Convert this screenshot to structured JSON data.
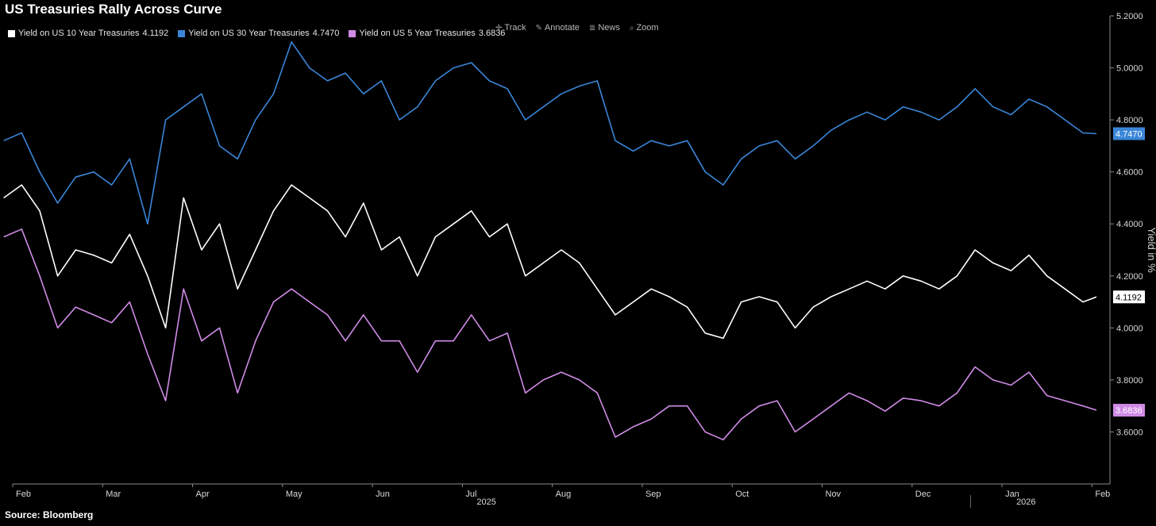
{
  "title": "US Treasuries Rally Across Curve",
  "source": "Source: Bloomberg",
  "toolbar": [
    {
      "label": "Track",
      "icon": "crosshair-icon",
      "glyph": "✛"
    },
    {
      "label": "Annotate",
      "icon": "pencil-icon",
      "glyph": "✎"
    },
    {
      "label": "News",
      "icon": "news-icon",
      "glyph": "≣"
    },
    {
      "label": "Zoom",
      "icon": "magnifier-icon",
      "glyph": "⌕"
    }
  ],
  "chart_data": {
    "type": "line",
    "title": "US Treasuries Rally Across Curve",
    "ylabel": "Yield in %",
    "ylim": [
      3.4,
      5.2
    ],
    "xlim": [
      0,
      12.2
    ],
    "yticks": [
      "5.2000",
      "5.0000",
      "4.8000",
      "4.6000",
      "4.4000",
      "4.2000",
      "4.0000",
      "3.8000",
      "3.6000"
    ],
    "month_labels": [
      "Feb",
      "Mar",
      "Apr",
      "May",
      "Jun",
      "Jul",
      "Aug",
      "Sep",
      "Oct",
      "Nov",
      "Dec",
      "Jan",
      "Feb"
    ],
    "year_labels": [
      {
        "label": "2025",
        "x": 5.0
      },
      {
        "label": "2026",
        "x": 11.0
      }
    ],
    "grid": false,
    "legend_position": "top-left",
    "series": [
      {
        "name": "Yield on US 10 Year Treasuries",
        "last_value": "4.1192",
        "color": "#ffffff",
        "x": [
          -0.1,
          0.1,
          0.3,
          0.5,
          0.7,
          0.9,
          1.1,
          1.3,
          1.5,
          1.7,
          1.9,
          2.1,
          2.3,
          2.5,
          2.7,
          2.9,
          3.1,
          3.3,
          3.5,
          3.7,
          3.9,
          4.1,
          4.3,
          4.5,
          4.7,
          4.9,
          5.1,
          5.3,
          5.5,
          5.7,
          5.9,
          6.1,
          6.3,
          6.5,
          6.7,
          6.9,
          7.1,
          7.3,
          7.5,
          7.7,
          7.9,
          8.1,
          8.3,
          8.5,
          8.7,
          8.9,
          9.1,
          9.3,
          9.5,
          9.7,
          9.9,
          10.1,
          10.3,
          10.5,
          10.7,
          10.9,
          11.1,
          11.3,
          11.5,
          11.7,
          11.9,
          12.05
        ],
        "values": [
          4.5,
          4.55,
          4.45,
          4.2,
          4.3,
          4.28,
          4.25,
          4.36,
          4.2,
          4.0,
          4.5,
          4.3,
          4.4,
          4.15,
          4.3,
          4.45,
          4.55,
          4.5,
          4.45,
          4.35,
          4.48,
          4.3,
          4.35,
          4.2,
          4.35,
          4.4,
          4.45,
          4.35,
          4.4,
          4.2,
          4.25,
          4.3,
          4.25,
          4.15,
          4.05,
          4.1,
          4.15,
          4.12,
          4.08,
          3.98,
          3.96,
          4.1,
          4.12,
          4.1,
          4.0,
          4.08,
          4.12,
          4.15,
          4.18,
          4.15,
          4.2,
          4.18,
          4.15,
          4.2,
          4.3,
          4.25,
          4.22,
          4.28,
          4.2,
          4.15,
          4.1,
          4.1192
        ]
      },
      {
        "name": "Yield on US 30 Year Treasuries",
        "last_value": "4.7470",
        "color": "#3a86d8",
        "x": [
          -0.1,
          0.1,
          0.3,
          0.5,
          0.7,
          0.9,
          1.1,
          1.3,
          1.5,
          1.7,
          1.9,
          2.1,
          2.3,
          2.5,
          2.7,
          2.9,
          3.1,
          3.3,
          3.5,
          3.7,
          3.9,
          4.1,
          4.3,
          4.5,
          4.7,
          4.9,
          5.1,
          5.3,
          5.5,
          5.7,
          5.9,
          6.1,
          6.3,
          6.5,
          6.7,
          6.9,
          7.1,
          7.3,
          7.5,
          7.7,
          7.9,
          8.1,
          8.3,
          8.5,
          8.7,
          8.9,
          9.1,
          9.3,
          9.5,
          9.7,
          9.9,
          10.1,
          10.3,
          10.5,
          10.7,
          10.9,
          11.1,
          11.3,
          11.5,
          11.7,
          11.9,
          12.05
        ],
        "values": [
          4.72,
          4.75,
          4.6,
          4.48,
          4.58,
          4.6,
          4.55,
          4.65,
          4.4,
          4.8,
          4.85,
          4.9,
          4.7,
          4.65,
          4.8,
          4.9,
          5.1,
          5.0,
          4.95,
          4.98,
          4.9,
          4.95,
          4.8,
          4.85,
          4.95,
          5.0,
          5.02,
          4.95,
          4.92,
          4.8,
          4.85,
          4.9,
          4.93,
          4.95,
          4.72,
          4.68,
          4.72,
          4.7,
          4.72,
          4.6,
          4.55,
          4.65,
          4.7,
          4.72,
          4.65,
          4.7,
          4.76,
          4.8,
          4.83,
          4.8,
          4.85,
          4.83,
          4.8,
          4.85,
          4.92,
          4.85,
          4.82,
          4.88,
          4.85,
          4.8,
          4.75,
          4.747
        ]
      },
      {
        "name": "Yield on US 5 Year Treasuries",
        "last_value": "3.6836",
        "color": "#d08be6",
        "x": [
          -0.1,
          0.1,
          0.3,
          0.5,
          0.7,
          0.9,
          1.1,
          1.3,
          1.5,
          1.7,
          1.9,
          2.1,
          2.3,
          2.5,
          2.7,
          2.9,
          3.1,
          3.3,
          3.5,
          3.7,
          3.9,
          4.1,
          4.3,
          4.5,
          4.7,
          4.9,
          5.1,
          5.3,
          5.5,
          5.7,
          5.9,
          6.1,
          6.3,
          6.5,
          6.7,
          6.9,
          7.1,
          7.3,
          7.5,
          7.7,
          7.9,
          8.1,
          8.3,
          8.5,
          8.7,
          8.9,
          9.1,
          9.3,
          9.5,
          9.7,
          9.9,
          10.1,
          10.3,
          10.5,
          10.7,
          10.9,
          11.1,
          11.3,
          11.5,
          11.7,
          11.9,
          12.05
        ],
        "values": [
          4.35,
          4.38,
          4.2,
          4.0,
          4.08,
          4.05,
          4.02,
          4.1,
          3.9,
          3.72,
          4.15,
          3.95,
          4.0,
          3.75,
          3.95,
          4.1,
          4.15,
          4.1,
          4.05,
          3.95,
          4.05,
          3.95,
          3.95,
          3.83,
          3.95,
          3.95,
          4.05,
          3.95,
          3.98,
          3.75,
          3.8,
          3.83,
          3.8,
          3.75,
          3.58,
          3.62,
          3.65,
          3.7,
          3.7,
          3.6,
          3.57,
          3.65,
          3.7,
          3.72,
          3.6,
          3.65,
          3.7,
          3.75,
          3.72,
          3.68,
          3.73,
          3.72,
          3.7,
          3.75,
          3.85,
          3.8,
          3.78,
          3.83,
          3.74,
          3.72,
          3.7,
          3.6836
        ]
      }
    ]
  }
}
